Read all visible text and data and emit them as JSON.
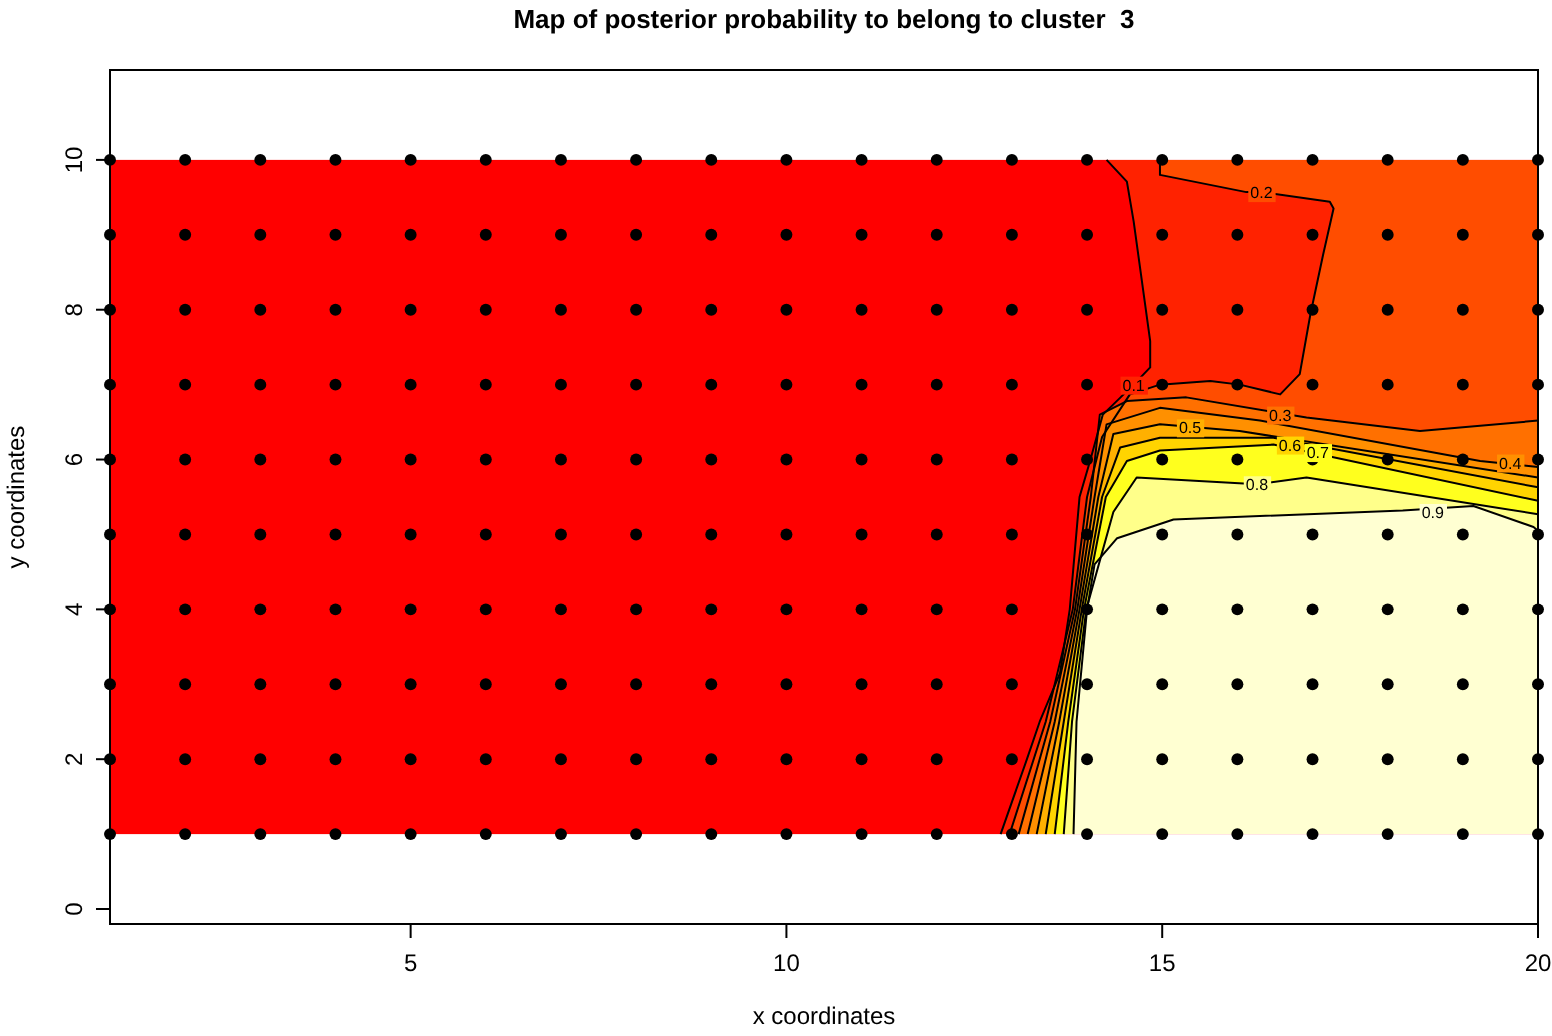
{
  "chart_data": {
    "type": "area",
    "title": "Map of posterior probability to belong to cluster  3",
    "xlabel": "x coordinates",
    "ylabel": "y coordinates",
    "xlim": [
      1,
      20
    ],
    "ylim": [
      -0.2,
      11.2
    ],
    "xticks": [
      5,
      10,
      15,
      20
    ],
    "yticks": [
      0,
      2,
      4,
      6,
      8,
      10
    ],
    "grid": false,
    "bands": [
      {
        "axis": "y",
        "from": 1,
        "to": 10,
        "color": "#ff0000"
      }
    ],
    "series": [
      {
        "color": "#ff2200",
        "x": [
          12.85,
          13.2,
          13.37,
          13.64,
          13.77,
          13.9,
          14.04,
          14.21,
          14.62,
          14.84,
          14.84,
          14.62,
          14.53,
          14.26,
          20
        ],
        "values": [
          1,
          2,
          2.5,
          3.15,
          4,
          5.5,
          5.98,
          6.6,
          7.0,
          7.23,
          7.58,
          9.18,
          9.71,
          10,
          10
        ]
      },
      {
        "color": "#ff4d00",
        "x": [
          12.97,
          13.45,
          13.81,
          14.0,
          14.2,
          14.57,
          14.97,
          15.64,
          16.03,
          16.57,
          16.83,
          16.97,
          17.14,
          17.28,
          17.23,
          16.32,
          16.12,
          14.97,
          14.97,
          20
        ],
        "values": [
          1,
          2.5,
          4,
          5.5,
          6.3,
          6.87,
          7.0,
          7.05,
          7.0,
          6.87,
          7.14,
          7.93,
          8.73,
          9.35,
          9.44,
          9.57,
          9.57,
          9.8,
          10,
          10
        ]
      },
      {
        "color": "#ff7000",
        "x": [
          13.09,
          13.51,
          13.84,
          14.05,
          14.17,
          14.53,
          15.32,
          16.92,
          18.43,
          20
        ],
        "values": [
          1,
          2.5,
          4,
          5.5,
          6.6,
          6.78,
          6.83,
          6.56,
          6.38,
          6.52
        ]
      },
      {
        "color": "#ff9000",
        "x": [
          13.21,
          13.57,
          13.87,
          14.1,
          14.26,
          14.97,
          16.3,
          19.23,
          20
        ],
        "values": [
          1,
          2.5,
          4,
          5.5,
          6.47,
          6.69,
          6.52,
          5.98,
          5.9
        ]
      },
      {
        "color": "#ffb000",
        "x": [
          13.33,
          13.63,
          13.9,
          14.15,
          14.35,
          14.97,
          16.03,
          20
        ],
        "values": [
          1,
          2.5,
          4,
          5.5,
          6.34,
          6.47,
          6.38,
          5.76
        ]
      },
      {
        "color": "#ffd400",
        "x": [
          13.45,
          13.69,
          13.93,
          14.2,
          14.44,
          14.97,
          16.48,
          20
        ],
        "values": [
          1,
          2.5,
          4,
          5.5,
          6.16,
          6.29,
          6.29,
          5.63
        ]
      },
      {
        "color": "#ffff1e",
        "x": [
          13.57,
          13.75,
          13.96,
          14.25,
          14.53,
          14.97,
          16.48,
          20
        ],
        "values": [
          1,
          2.5,
          4,
          5.5,
          5.98,
          6.12,
          6.2,
          5.45
        ]
      },
      {
        "color": "#ffff8a",
        "x": [
          13.69,
          13.8,
          13.99,
          14.35,
          14.66,
          16.26,
          16.92,
          20
        ],
        "values": [
          1,
          2.5,
          4,
          5.3,
          5.76,
          5.67,
          5.76,
          5.27
        ]
      },
      {
        "color": "#ffffd2",
        "x": [
          13.82,
          13.86,
          14.0,
          14.1,
          14.4,
          14.7,
          15.15,
          18.2,
          19.14,
          19.94,
          20
        ],
        "values": [
          1,
          2.5,
          4,
          4.6,
          4.95,
          5.05,
          5.2,
          5.32,
          5.38,
          5.1,
          5.05
        ]
      },
      {
        "type": "scatter",
        "color": "#000000",
        "marker": "circle",
        "x": [
          1,
          2,
          3,
          4,
          5,
          6,
          7,
          8,
          9,
          10,
          11,
          12,
          13,
          14,
          15,
          16,
          17,
          18,
          19,
          20,
          1,
          2,
          3,
          4,
          5,
          6,
          7,
          8,
          9,
          10,
          11,
          12,
          13,
          14,
          15,
          16,
          17,
          18,
          19,
          20,
          1,
          2,
          3,
          4,
          5,
          6,
          7,
          8,
          9,
          10,
          11,
          12,
          13,
          14,
          15,
          16,
          17,
          18,
          19,
          20,
          1,
          2,
          3,
          4,
          5,
          6,
          7,
          8,
          9,
          10,
          11,
          12,
          13,
          14,
          15,
          16,
          17,
          18,
          19,
          20,
          1,
          2,
          3,
          4,
          5,
          6,
          7,
          8,
          9,
          10,
          11,
          12,
          13,
          14,
          15,
          16,
          17,
          18,
          19,
          20,
          1,
          2,
          3,
          4,
          5,
          6,
          7,
          8,
          9,
          10,
          11,
          12,
          13,
          14,
          15,
          16,
          17,
          18,
          19,
          20,
          1,
          2,
          3,
          4,
          5,
          6,
          7,
          8,
          9,
          10,
          11,
          12,
          13,
          14,
          15,
          16,
          17,
          18,
          19,
          20,
          1,
          2,
          3,
          4,
          5,
          6,
          7,
          8,
          9,
          10,
          11,
          12,
          13,
          14,
          15,
          16,
          17,
          18,
          19,
          20,
          1,
          2,
          3,
          4,
          5,
          6,
          7,
          8,
          9,
          10,
          11,
          12,
          13,
          14,
          15,
          16,
          17,
          18,
          19,
          20,
          1,
          2,
          3,
          4,
          5,
          6,
          7,
          8,
          9,
          10,
          11,
          12,
          13,
          14,
          15,
          16,
          17,
          18,
          19,
          20
        ],
        "values": [
          1,
          1,
          1,
          1,
          1,
          1,
          1,
          1,
          1,
          1,
          1,
          1,
          1,
          1,
          1,
          1,
          1,
          1,
          1,
          1,
          2,
          2,
          2,
          2,
          2,
          2,
          2,
          2,
          2,
          2,
          2,
          2,
          2,
          2,
          2,
          2,
          2,
          2,
          2,
          2,
          3,
          3,
          3,
          3,
          3,
          3,
          3,
          3,
          3,
          3,
          3,
          3,
          3,
          3,
          3,
          3,
          3,
          3,
          3,
          3,
          4,
          4,
          4,
          4,
          4,
          4,
          4,
          4,
          4,
          4,
          4,
          4,
          4,
          4,
          4,
          4,
          4,
          4,
          4,
          4,
          5,
          5,
          5,
          5,
          5,
          5,
          5,
          5,
          5,
          5,
          5,
          5,
          5,
          5,
          5,
          5,
          5,
          5,
          5,
          5,
          6,
          6,
          6,
          6,
          6,
          6,
          6,
          6,
          6,
          6,
          6,
          6,
          6,
          6,
          6,
          6,
          6,
          6,
          6,
          6,
          7,
          7,
          7,
          7,
          7,
          7,
          7,
          7,
          7,
          7,
          7,
          7,
          7,
          7,
          7,
          7,
          7,
          7,
          7,
          7,
          8,
          8,
          8,
          8,
          8,
          8,
          8,
          8,
          8,
          8,
          8,
          8,
          8,
          8,
          8,
          8,
          8,
          8,
          8,
          8,
          9,
          9,
          9,
          9,
          9,
          9,
          9,
          9,
          9,
          9,
          9,
          9,
          9,
          9,
          9,
          9,
          9,
          9,
          9,
          9,
          10,
          10,
          10,
          10,
          10,
          10,
          10,
          10,
          10,
          10,
          10,
          10,
          10,
          10,
          10,
          10,
          10,
          10,
          10,
          10
        ]
      }
    ],
    "annotations": [
      {
        "text": "0.1",
        "x": 14.62,
        "y": 7.0
      },
      {
        "text": "0.2",
        "x": 16.32,
        "y": 9.57
      },
      {
        "text": "0.3",
        "x": 16.57,
        "y": 6.6
      },
      {
        "text": "0.4",
        "x": 19.63,
        "y": 5.96
      },
      {
        "text": "0.5",
        "x": 15.37,
        "y": 6.43
      },
      {
        "text": "0.6",
        "x": 16.7,
        "y": 6.2
      },
      {
        "text": "0.7",
        "x": 17.07,
        "y": 6.1
      },
      {
        "text": "0.8",
        "x": 16.26,
        "y": 5.67
      },
      {
        "text": "0.9",
        "x": 18.6,
        "y": 5.3
      }
    ]
  }
}
